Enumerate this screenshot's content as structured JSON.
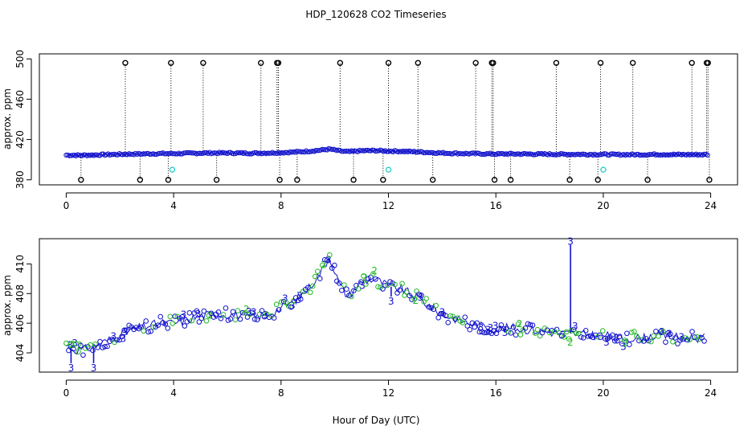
{
  "title": "HDP_120628  CO2 Timeseries",
  "xlabel": "Hour of Day (UTC)",
  "chart_data": [
    {
      "type": "scatter",
      "panel": "top",
      "ylabel": "approx. ppm",
      "xlim": [
        -1,
        25
      ],
      "ylim": [
        375,
        505
      ],
      "xticks": [
        0,
        4,
        8,
        12,
        16,
        20,
        24
      ],
      "yticks": [
        380,
        420,
        460,
        500
      ],
      "baseline": {
        "x": [
          0,
          0.5,
          1,
          1.5,
          2,
          2.5,
          3,
          3.5,
          4,
          4.5,
          5,
          5.5,
          6,
          6.5,
          7,
          7.5,
          8,
          8.5,
          9,
          9.5,
          9.8,
          10.2,
          10.5,
          11,
          11.5,
          12,
          12.5,
          13,
          13.5,
          14,
          14.5,
          15,
          15.5,
          16,
          16.5,
          17,
          17.5,
          18,
          18.5,
          19,
          19.5,
          20,
          20.5,
          21,
          21.5,
          22,
          22.5,
          23,
          23.5,
          23.8
        ],
        "y": [
          404.5,
          404.3,
          404.6,
          405,
          405.3,
          405.6,
          405.8,
          406,
          406,
          406.2,
          406.5,
          406.6,
          406.6,
          406.5,
          406.4,
          406.6,
          407,
          407.5,
          408.3,
          409.5,
          410.5,
          408.5,
          407.8,
          408.8,
          409,
          408.5,
          408.3,
          407.8,
          407.2,
          406.6,
          406.3,
          406,
          405.8,
          405.6,
          405.7,
          405.6,
          405.5,
          405.4,
          405.3,
          405.3,
          405.2,
          405.2,
          405,
          405,
          405,
          405.2,
          405.1,
          405,
          405,
          405
        ]
      },
      "spikes_high": [
        {
          "x": 2.2,
          "y": 496
        },
        {
          "x": 3.9,
          "y": 496
        },
        {
          "x": 5.1,
          "y": 496
        },
        {
          "x": 7.25,
          "y": 496
        },
        {
          "x": 7.85,
          "y": 496
        },
        {
          "x": 7.9,
          "y": 496
        },
        {
          "x": 10.2,
          "y": 496
        },
        {
          "x": 12.0,
          "y": 496
        },
        {
          "x": 13.1,
          "y": 496
        },
        {
          "x": 15.25,
          "y": 496
        },
        {
          "x": 15.85,
          "y": 496
        },
        {
          "x": 15.9,
          "y": 496
        },
        {
          "x": 18.25,
          "y": 496
        },
        {
          "x": 19.9,
          "y": 496
        },
        {
          "x": 21.1,
          "y": 496
        },
        {
          "x": 23.3,
          "y": 496
        },
        {
          "x": 23.85,
          "y": 496
        },
        {
          "x": 23.9,
          "y": 496
        }
      ],
      "spikes_low": [
        {
          "x": 0.55,
          "y": 380
        },
        {
          "x": 2.75,
          "y": 380
        },
        {
          "x": 3.8,
          "y": 380
        },
        {
          "x": 5.6,
          "y": 380
        },
        {
          "x": 7.95,
          "y": 380
        },
        {
          "x": 8.6,
          "y": 380
        },
        {
          "x": 10.7,
          "y": 380
        },
        {
          "x": 11.8,
          "y": 380
        },
        {
          "x": 13.65,
          "y": 380
        },
        {
          "x": 15.95,
          "y": 380
        },
        {
          "x": 16.55,
          "y": 380
        },
        {
          "x": 18.75,
          "y": 380
        },
        {
          "x": 19.8,
          "y": 380
        },
        {
          "x": 21.65,
          "y": 380
        },
        {
          "x": 23.95,
          "y": 380
        }
      ],
      "cyan_points": [
        {
          "x": 3.95,
          "y": 390
        },
        {
          "x": 12.0,
          "y": 390
        },
        {
          "x": 20.0,
          "y": 390
        }
      ],
      "colors": {
        "main": "#1111cc",
        "flag": "#000000",
        "cyan": "#22cccc"
      }
    },
    {
      "type": "scatter",
      "panel": "bottom",
      "ylabel": "approx. ppm",
      "xlim": [
        -1,
        25
      ],
      "ylim": [
        402.7,
        411.7
      ],
      "xticks": [
        0,
        4,
        8,
        12,
        16,
        20,
        24
      ],
      "yticks": [
        404,
        406,
        408,
        410
      ],
      "series": [
        {
          "name": "3",
          "color": "#1111cc"
        },
        {
          "name": "2",
          "color": "#22bb22"
        }
      ],
      "baseline": {
        "x": [
          0,
          0.3,
          0.6,
          1,
          1.5,
          2,
          2.5,
          3,
          3.5,
          4,
          4.5,
          5,
          5.5,
          6,
          6.5,
          7,
          7.5,
          8,
          8.5,
          9,
          9.5,
          9.8,
          10.2,
          10.5,
          11,
          11.5,
          12,
          12.5,
          13,
          13.5,
          14,
          14.5,
          15,
          15.5,
          16,
          16.5,
          17,
          17.5,
          18,
          18.5,
          19,
          19.5,
          20,
          20.5,
          21,
          21.5,
          22,
          22.5,
          23,
          23.5,
          23.8
        ],
        "y": [
          404.5,
          404.2,
          404.2,
          404.4,
          404.8,
          405.2,
          405.6,
          405.8,
          406,
          406,
          406.2,
          406.5,
          406.6,
          406.6,
          406.5,
          406.4,
          406.6,
          407,
          407.5,
          408.3,
          409.5,
          410.5,
          408.5,
          407.8,
          408.8,
          409,
          408.5,
          408.3,
          407.8,
          407.2,
          406.6,
          406.3,
          406,
          405.8,
          405.6,
          405.7,
          405.6,
          405.5,
          405.4,
          405.3,
          405.3,
          405.2,
          405.2,
          405,
          405,
          405,
          405.2,
          405.1,
          405,
          405,
          405
        ]
      },
      "spikes": [
        {
          "x": 0.18,
          "y": 403.3
        },
        {
          "x": 1.02,
          "y": 403.3
        },
        {
          "x": 18.78,
          "y": 411.3
        },
        {
          "x": 12.1,
          "y": 407.8
        }
      ],
      "marker_label": "3",
      "alt_marker_label": "2"
    }
  ]
}
